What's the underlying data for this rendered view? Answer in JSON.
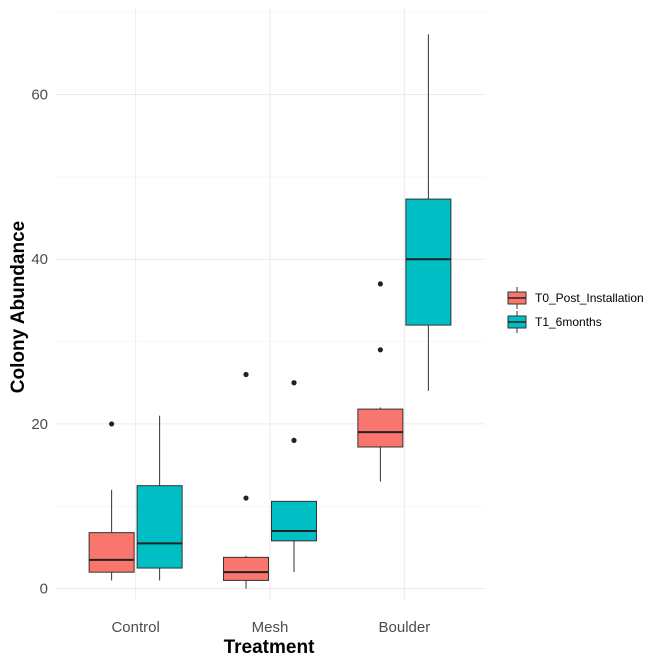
{
  "chart_data": {
    "type": "boxplot",
    "xlabel": "Treatment",
    "ylabel": "Colony Abundance",
    "categories": [
      "Control",
      "Mesh",
      "Boulder"
    ],
    "y_ticks": [
      0,
      20,
      40,
      60
    ],
    "ylim": [
      -1.5,
      70.5
    ],
    "grid": true,
    "legend_position": "right",
    "series": [
      {
        "name": "T0_Post_Installation",
        "color": "#F8766D",
        "boxes": [
          {
            "category": "Control",
            "min": 1,
            "q1": 2,
            "median": 3.5,
            "q3": 6.8,
            "max": 12,
            "outliers": [
              20
            ]
          },
          {
            "category": "Mesh",
            "min": 0,
            "q1": 1,
            "median": 2,
            "q3": 3.8,
            "max": 4,
            "outliers": [
              11,
              26
            ]
          },
          {
            "category": "Boulder",
            "min": 13,
            "q1": 17.2,
            "median": 19,
            "q3": 21.8,
            "max": 22,
            "outliers": [
              29,
              37
            ]
          }
        ]
      },
      {
        "name": "T1_6months",
        "color": "#00BFC4",
        "boxes": [
          {
            "category": "Control",
            "min": 1,
            "q1": 2.5,
            "median": 5.5,
            "q3": 12.5,
            "max": 21,
            "outliers": []
          },
          {
            "category": "Mesh",
            "min": 2,
            "q1": 5.8,
            "median": 7,
            "q3": 10.6,
            "max": 10.6,
            "outliers": [
              18,
              25
            ]
          },
          {
            "category": "Boulder",
            "min": 24,
            "q1": 32,
            "median": 40,
            "q3": 47.3,
            "max": 67.3,
            "outliers": []
          }
        ]
      }
    ]
  }
}
